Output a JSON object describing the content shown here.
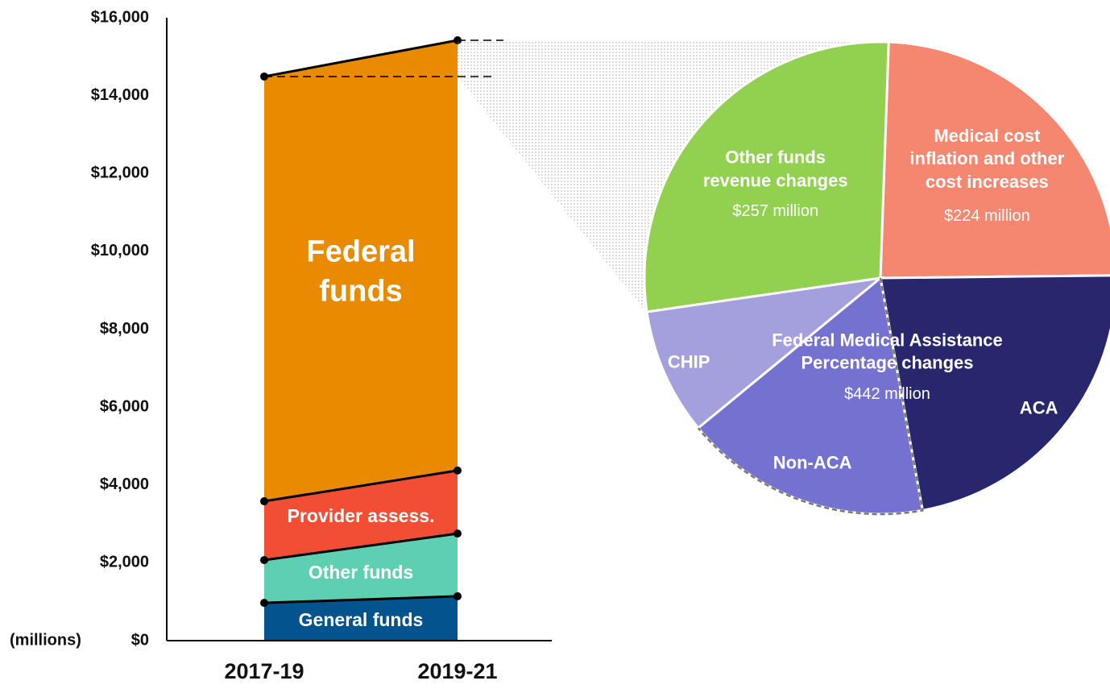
{
  "chart_data": [
    {
      "type": "stacked_area",
      "categories": [
        "2017-19",
        "2019-21"
      ],
      "y_label": "(millions)",
      "series": [
        {
          "name": "General funds",
          "color": "#02538e",
          "values": [
            970,
            1140
          ]
        },
        {
          "name": "Other funds",
          "color": "#5ecfb1",
          "values": [
            1100,
            1610
          ]
        },
        {
          "name": "Provider assess.",
          "color": "#f24e33",
          "values": [
            1510,
            1620
          ]
        },
        {
          "name": "Federal funds",
          "color": "#e98a00",
          "values": [
            10910,
            11050
          ]
        }
      ],
      "ylim": [
        0,
        16000
      ],
      "yticks": [
        {
          "value": 0,
          "label": "$0"
        },
        {
          "value": 2000,
          "label": "$2,000"
        },
        {
          "value": 4000,
          "label": "$4,000"
        },
        {
          "value": 6000,
          "label": "$6,000"
        },
        {
          "value": 8000,
          "label": "$8,000"
        },
        {
          "value": 10000,
          "label": "$10,000"
        },
        {
          "value": 12000,
          "label": "$12,000"
        },
        {
          "value": 14000,
          "label": "$14,000"
        },
        {
          "value": 16000,
          "label": "$16,000"
        }
      ]
    },
    {
      "type": "pie",
      "categories": [
        "Medical cost inflation and other cost increases",
        "ACA",
        "Non-ACA",
        "CHIP",
        "Other funds revenue changes"
      ],
      "values": [
        224,
        206,
        156,
        80,
        257
      ],
      "value_labels": [
        "$224 million",
        null,
        null,
        null,
        "$257 million"
      ],
      "colors": [
        "#f5866f",
        "#28276e",
        "#7571d0",
        "#a4a0de",
        "#92d050"
      ],
      "group": {
        "label": "Federal Medical Assistance Percentage changes",
        "value": 442,
        "value_label": "$442 million"
      }
    }
  ]
}
